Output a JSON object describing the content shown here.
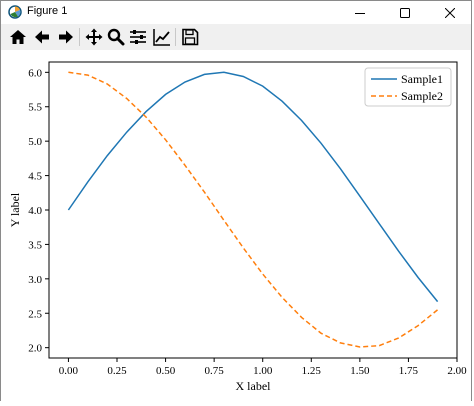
{
  "window": {
    "title": "Figure 1",
    "app_icon": "matplotlib-icon",
    "controls": [
      "minimize-icon",
      "maximize-icon",
      "close-icon"
    ]
  },
  "toolbar": {
    "tools": [
      "home-icon",
      "back-arrow-icon",
      "forward-arrow-icon",
      "pan-icon",
      "zoom-icon",
      "subplots-config-icon",
      "edit-axis-icon",
      "save-icon"
    ]
  },
  "chart_data": {
    "type": "line",
    "xlabel": "X label",
    "ylabel": "Y label",
    "xlim": [
      -0.1,
      2.0
    ],
    "ylim": [
      1.85,
      6.15
    ],
    "xticks": [
      "0.00",
      "0.25",
      "0.50",
      "0.75",
      "1.00",
      "1.25",
      "1.50",
      "1.75",
      "2.00"
    ],
    "yticks": [
      "2.0",
      "2.5",
      "3.0",
      "3.5",
      "4.0",
      "4.5",
      "5.0",
      "5.5",
      "6.0"
    ],
    "x": [
      0.0,
      0.1,
      0.2,
      0.3,
      0.4,
      0.5,
      0.6,
      0.7,
      0.8,
      0.9,
      1.0,
      1.1,
      1.2,
      1.3,
      1.4,
      1.5,
      1.6,
      1.7,
      1.8,
      1.9
    ],
    "series": [
      {
        "name": "Sample1",
        "color": "#1f77b4",
        "style": "solid",
        "values": [
          4.0,
          4.41,
          4.79,
          5.13,
          5.43,
          5.68,
          5.86,
          5.97,
          6.0,
          5.94,
          5.8,
          5.58,
          5.3,
          4.97,
          4.6,
          4.2,
          3.8,
          3.4,
          3.02,
          2.67
        ]
      },
      {
        "name": "Sample2",
        "color": "#ff7f0e",
        "style": "dashed",
        "values": [
          6.0,
          5.96,
          5.83,
          5.62,
          5.35,
          5.02,
          4.65,
          4.26,
          3.85,
          3.45,
          3.07,
          2.73,
          2.44,
          2.21,
          2.07,
          2.01,
          2.03,
          2.14,
          2.32,
          2.55
        ]
      }
    ],
    "legend": "top-right",
    "grid": false
  }
}
